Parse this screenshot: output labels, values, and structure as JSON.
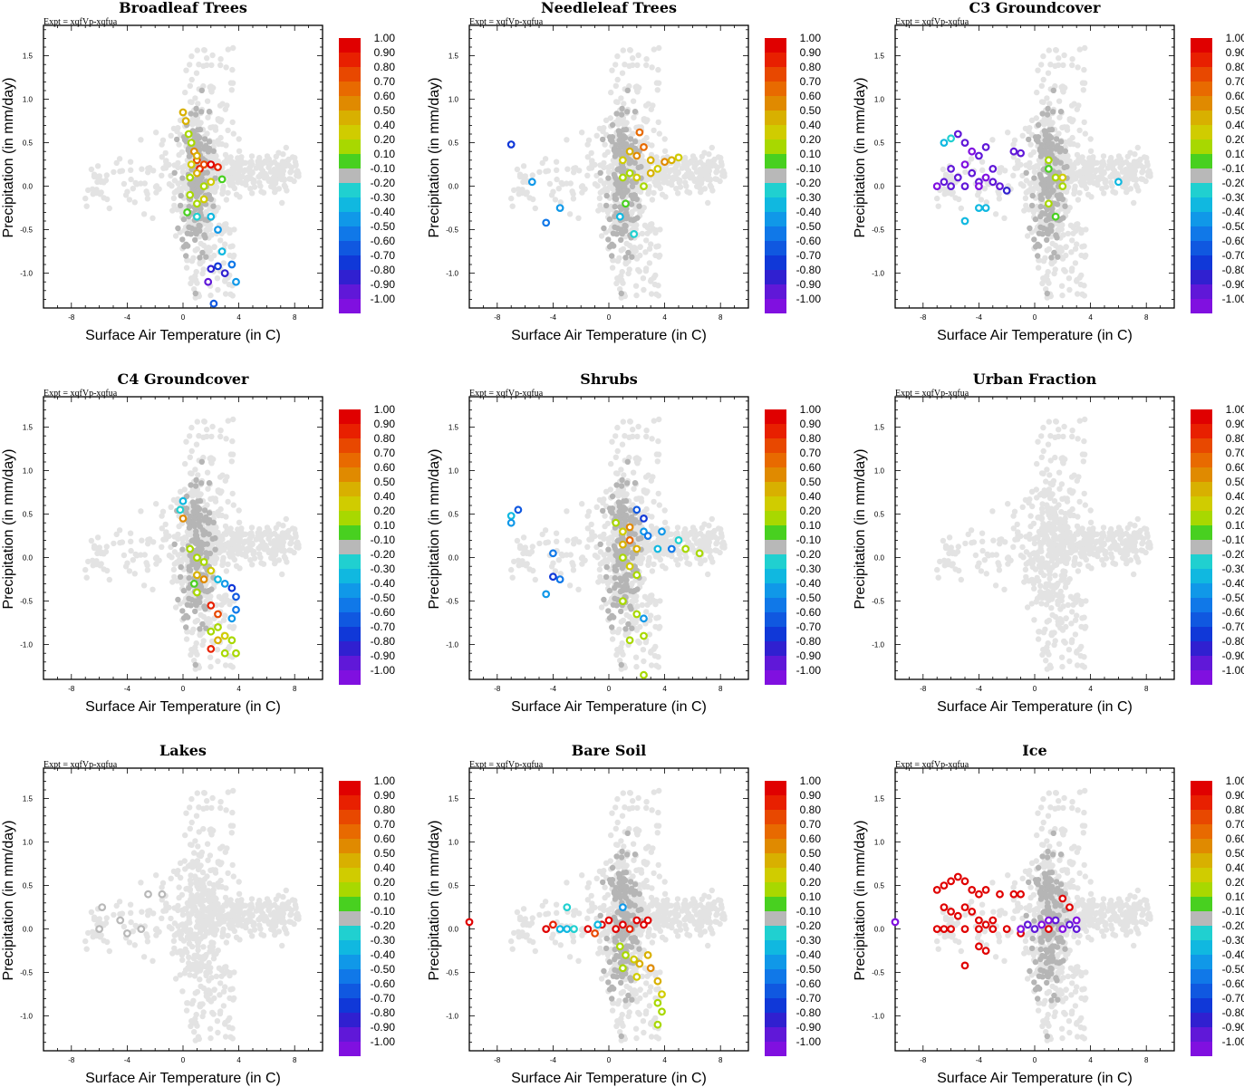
{
  "figure": {
    "experiment_label": "Expt = xqfVp-xqfua",
    "xlabel": "Surface Air Temperature (in C)",
    "ylabel": "Precipitation (in mm/day)",
    "xlim": [
      -10,
      10
    ],
    "ylim": [
      -1.4,
      1.85
    ],
    "x_ticks": [
      "-8",
      "-4",
      "0",
      "4",
      "8"
    ],
    "y_ticks": [
      "1.5",
      "1.0",
      "0.5",
      "0.0",
      "-0.5",
      "-1.0"
    ],
    "colorbar": {
      "labels": [
        "1.00",
        "0.90",
        "0.80",
        "0.70",
        "0.60",
        "0.50",
        "0.40",
        "0.20",
        "0.10",
        "-0.10",
        "-0.20",
        "-0.30",
        "-0.40",
        "-0.50",
        "-0.60",
        "-0.70",
        "-0.80",
        "-0.90",
        "-1.00"
      ],
      "colors": [
        "#e00000",
        "#e82000",
        "#e84800",
        "#e86a00",
        "#e08a00",
        "#d8b000",
        "#d0cc00",
        "#a8d800",
        "#48d020",
        "#b8b8b8",
        "#20d0d0",
        "#10b8e0",
        "#1098e8",
        "#1078e8",
        "#1058e0",
        "#1038d8",
        "#3020d0",
        "#6018d8",
        "#8010e0"
      ]
    }
  },
  "chart_data": [
    {
      "type": "scatter",
      "title": "Broadleaf Trees",
      "xlabel": "Surface Air Temperature (in C)",
      "ylabel": "Precipitation (in mm/day)",
      "xlim": [
        -10,
        10
      ],
      "ylim": [
        -1.4,
        1.85
      ],
      "points": [
        [
          0.0,
          0.85,
          0.5
        ],
        [
          0.2,
          0.75,
          0.5
        ],
        [
          0.4,
          0.6,
          0.2
        ],
        [
          0.6,
          0.5,
          0.3
        ],
        [
          0.8,
          0.4,
          0.6
        ],
        [
          1.0,
          0.3,
          0.8
        ],
        [
          1.2,
          0.2,
          0.9
        ],
        [
          1.5,
          0.25,
          0.8
        ],
        [
          2.0,
          0.25,
          1.0
        ],
        [
          2.5,
          0.22,
          0.9
        ],
        [
          0.5,
          0.1,
          0.3
        ],
        [
          1.0,
          0.15,
          0.5
        ],
        [
          1.5,
          0.0,
          0.2
        ],
        [
          2.0,
          0.05,
          0.4
        ],
        [
          2.8,
          0.08,
          0.1
        ],
        [
          0.5,
          -0.1,
          0.3
        ],
        [
          1.0,
          -0.2,
          0.2
        ],
        [
          1.5,
          -0.15,
          0.4
        ],
        [
          0.3,
          -0.3,
          0.1
        ],
        [
          1.0,
          -0.35,
          -0.2
        ],
        [
          2.0,
          -0.35,
          -0.3
        ],
        [
          2.5,
          -0.5,
          -0.4
        ],
        [
          2.8,
          -0.75,
          -0.3
        ],
        [
          2.0,
          -0.95,
          -0.8
        ],
        [
          2.5,
          -0.92,
          -0.7
        ],
        [
          3.0,
          -1.0,
          -0.8
        ],
        [
          3.5,
          -0.9,
          -0.5
        ],
        [
          3.8,
          -1.1,
          -0.4
        ],
        [
          1.8,
          -1.1,
          -0.9
        ],
        [
          2.2,
          -1.35,
          -0.6
        ],
        [
          1.0,
          0.35,
          0.5
        ],
        [
          0.6,
          0.25,
          0.4
        ]
      ]
    },
    {
      "type": "scatter",
      "title": "Needleleaf Trees",
      "xlabel": "Surface Air Temperature (in C)",
      "ylabel": "Precipitation (in mm/day)",
      "xlim": [
        -10,
        10
      ],
      "ylim": [
        -1.4,
        1.85
      ],
      "points": [
        [
          -7.0,
          0.48,
          -0.7
        ],
        [
          -5.5,
          0.05,
          -0.4
        ],
        [
          -4.5,
          -0.42,
          -0.5
        ],
        [
          -3.5,
          -0.25,
          -0.4
        ],
        [
          1.0,
          0.3,
          0.4
        ],
        [
          1.5,
          0.4,
          0.5
        ],
        [
          2.0,
          0.35,
          0.6
        ],
        [
          2.5,
          0.45,
          0.7
        ],
        [
          2.2,
          0.62,
          0.7
        ],
        [
          3.0,
          0.3,
          0.5
        ],
        [
          3.5,
          0.2,
          0.4
        ],
        [
          4.0,
          0.28,
          0.6
        ],
        [
          4.5,
          0.3,
          0.5
        ],
        [
          5.0,
          0.33,
          0.4
        ],
        [
          1.0,
          0.1,
          0.3
        ],
        [
          1.5,
          0.15,
          0.2
        ],
        [
          2.0,
          0.1,
          0.4
        ],
        [
          1.2,
          -0.2,
          0.1
        ],
        [
          0.8,
          -0.35,
          -0.3
        ],
        [
          1.8,
          -0.55,
          -0.2
        ],
        [
          2.5,
          0.0,
          0.3
        ],
        [
          3.0,
          0.15,
          0.5
        ]
      ]
    },
    {
      "type": "scatter",
      "title": "C3 Groundcover",
      "xlabel": "Surface Air Temperature (in C)",
      "ylabel": "Precipitation (in mm/day)",
      "xlim": [
        -10,
        10
      ],
      "ylim": [
        -1.4,
        1.85
      ],
      "points": [
        [
          -6.5,
          0.5,
          -0.3
        ],
        [
          -6.0,
          0.55,
          -0.2
        ],
        [
          -5.5,
          0.6,
          -0.9
        ],
        [
          -5.0,
          0.5,
          -0.9
        ],
        [
          -4.5,
          0.4,
          -1.0
        ],
        [
          -4.0,
          0.35,
          -0.9
        ],
        [
          -3.5,
          0.45,
          -0.9
        ],
        [
          -6.0,
          0.2,
          -0.9
        ],
        [
          -5.5,
          0.1,
          -0.9
        ],
        [
          -5.0,
          0.25,
          -1.0
        ],
        [
          -4.5,
          0.15,
          -0.9
        ],
        [
          -4.0,
          0.05,
          -0.9
        ],
        [
          -3.5,
          0.1,
          -1.0
        ],
        [
          -3.0,
          0.2,
          -0.9
        ],
        [
          -7.0,
          0.0,
          -1.0
        ],
        [
          -6.5,
          0.05,
          -0.9
        ],
        [
          -6.0,
          0.0,
          -0.9
        ],
        [
          -5.0,
          0.0,
          -0.9
        ],
        [
          -4.0,
          0.0,
          -1.0
        ],
        [
          -3.0,
          0.05,
          -0.9
        ],
        [
          -2.5,
          0.0,
          -0.9
        ],
        [
          -5.0,
          -0.4,
          -0.3
        ],
        [
          -4.0,
          -0.25,
          -0.3
        ],
        [
          -3.5,
          -0.25,
          -0.3
        ],
        [
          -1.5,
          0.4,
          -0.9
        ],
        [
          -1.0,
          0.38,
          -0.9
        ],
        [
          -2.0,
          -0.05,
          -0.8
        ],
        [
          6.0,
          0.05,
          -0.3
        ],
        [
          1.0,
          0.2,
          0.1
        ],
        [
          1.5,
          0.1,
          0.2
        ],
        [
          2.0,
          0.0,
          0.3
        ],
        [
          1.0,
          -0.2,
          0.2
        ],
        [
          1.5,
          -0.35,
          0.1
        ],
        [
          2.0,
          0.1,
          0.4
        ],
        [
          1.0,
          0.3,
          0.2
        ]
      ]
    },
    {
      "type": "scatter",
      "title": "C4 Groundcover",
      "xlabel": "Surface Air Temperature (in C)",
      "ylabel": "Precipitation (in mm/day)",
      "xlim": [
        -10,
        10
      ],
      "ylim": [
        -1.4,
        1.85
      ],
      "points": [
        [
          0.0,
          0.65,
          -0.3
        ],
        [
          -0.2,
          0.55,
          -0.2
        ],
        [
          0.0,
          0.45,
          0.6
        ],
        [
          0.5,
          0.1,
          0.2
        ],
        [
          1.0,
          0.0,
          0.3
        ],
        [
          1.5,
          -0.05,
          0.2
        ],
        [
          1.0,
          -0.2,
          0.5
        ],
        [
          1.5,
          -0.25,
          0.6
        ],
        [
          2.0,
          -0.15,
          0.4
        ],
        [
          2.5,
          -0.25,
          -0.3
        ],
        [
          3.0,
          -0.3,
          -0.4
        ],
        [
          3.5,
          -0.35,
          -0.7
        ],
        [
          3.8,
          -0.45,
          -0.6
        ],
        [
          3.8,
          -0.6,
          -0.5
        ],
        [
          3.5,
          -0.7,
          -0.4
        ],
        [
          2.0,
          -0.55,
          0.9
        ],
        [
          2.5,
          -0.65,
          0.8
        ],
        [
          2.0,
          -0.85,
          0.2
        ],
        [
          2.5,
          -0.95,
          0.5
        ],
        [
          3.0,
          -0.9,
          0.4
        ],
        [
          3.5,
          -0.95,
          0.3
        ],
        [
          2.0,
          -1.05,
          0.9
        ],
        [
          3.0,
          -1.1,
          0.3
        ],
        [
          3.8,
          -1.1,
          0.2
        ],
        [
          1.0,
          -0.4,
          0.2
        ],
        [
          0.8,
          -0.3,
          0.1
        ],
        [
          2.5,
          -0.8,
          0.3
        ]
      ]
    },
    {
      "type": "scatter",
      "title": "Shrubs",
      "xlabel": "Surface Air Temperature (in C)",
      "ylabel": "Precipitation (in mm/day)",
      "xlim": [
        -10,
        10
      ],
      "ylim": [
        -1.4,
        1.85
      ],
      "points": [
        [
          -7.0,
          0.48,
          -0.3
        ],
        [
          -6.5,
          0.55,
          -0.6
        ],
        [
          -7.0,
          0.4,
          -0.4
        ],
        [
          -4.5,
          -0.42,
          -0.4
        ],
        [
          -3.5,
          -0.25,
          -0.5
        ],
        [
          -4.0,
          -0.22,
          -0.7
        ],
        [
          -4.0,
          0.05,
          -0.5
        ],
        [
          0.5,
          0.4,
          0.2
        ],
        [
          1.0,
          0.3,
          0.4
        ],
        [
          1.5,
          0.2,
          0.7
        ],
        [
          2.0,
          0.1,
          0.5
        ],
        [
          1.0,
          0.0,
          0.3
        ],
        [
          1.5,
          -0.1,
          0.4
        ],
        [
          2.0,
          -0.2,
          0.2
        ],
        [
          2.5,
          0.3,
          -0.4
        ],
        [
          2.8,
          0.25,
          -0.5
        ],
        [
          2.0,
          0.55,
          -0.6
        ],
        [
          2.5,
          0.45,
          -0.7
        ],
        [
          3.5,
          0.1,
          -0.3
        ],
        [
          3.8,
          0.3,
          -0.4
        ],
        [
          4.5,
          0.1,
          -0.5
        ],
        [
          5.0,
          0.2,
          -0.2
        ],
        [
          5.5,
          0.1,
          0.2
        ],
        [
          6.5,
          0.05,
          0.2
        ],
        [
          1.0,
          -0.5,
          0.2
        ],
        [
          2.0,
          -0.65,
          0.2
        ],
        [
          2.5,
          -0.7,
          -0.4
        ],
        [
          2.5,
          -0.9,
          0.3
        ],
        [
          1.5,
          -0.95,
          0.2
        ],
        [
          2.5,
          -1.35,
          0.3
        ],
        [
          1.5,
          0.35,
          0.6
        ],
        [
          1.0,
          0.15,
          0.5
        ]
      ]
    },
    {
      "type": "scatter",
      "title": "Urban Fraction",
      "xlabel": "Surface Air Temperature (in C)",
      "ylabel": "Precipitation (in mm/day)",
      "xlim": [
        -10,
        10
      ],
      "ylim": [
        -1.4,
        1.85
      ],
      "points": []
    },
    {
      "type": "scatter",
      "title": "Lakes",
      "xlabel": "Surface Air Temperature (in C)",
      "ylabel": "Precipitation (in mm/day)",
      "xlim": [
        -10,
        10
      ],
      "ylim": [
        -1.4,
        1.85
      ],
      "points": [
        [
          -5.8,
          0.25,
          0.0
        ],
        [
          -4.5,
          0.1,
          0.0
        ],
        [
          -4.0,
          -0.05,
          0.0
        ],
        [
          -3.0,
          0.0,
          0.0
        ],
        [
          -2.5,
          0.4,
          0.0
        ],
        [
          -1.5,
          0.4,
          0.0
        ],
        [
          -6.0,
          0.0,
          0.0
        ]
      ]
    },
    {
      "type": "scatter",
      "title": "Bare Soil",
      "xlabel": "Surface Air Temperature (in C)",
      "ylabel": "Precipitation (in mm/day)",
      "xlim": [
        -10,
        10
      ],
      "ylim": [
        -1.4,
        1.85
      ],
      "points": [
        [
          -10.0,
          0.08,
          1.0
        ],
        [
          -4.5,
          0.0,
          1.0
        ],
        [
          -4.0,
          0.05,
          0.9
        ],
        [
          -3.5,
          0.0,
          -0.3
        ],
        [
          -3.0,
          0.0,
          -0.3
        ],
        [
          -2.5,
          0.0,
          -0.2
        ],
        [
          -3.0,
          0.25,
          -0.2
        ],
        [
          -1.5,
          0.0,
          1.0
        ],
        [
          -1.0,
          -0.05,
          0.8
        ],
        [
          -0.5,
          0.05,
          1.0
        ],
        [
          0.0,
          0.1,
          1.0
        ],
        [
          0.5,
          0.0,
          1.0
        ],
        [
          1.0,
          0.05,
          1.0
        ],
        [
          1.5,
          0.0,
          0.9
        ],
        [
          2.0,
          0.1,
          1.0
        ],
        [
          2.5,
          0.05,
          1.0
        ],
        [
          2.8,
          0.1,
          1.0
        ],
        [
          -0.8,
          0.05,
          -0.3
        ],
        [
          0.8,
          -0.2,
          0.2
        ],
        [
          1.2,
          -0.3,
          0.3
        ],
        [
          1.8,
          -0.35,
          0.4
        ],
        [
          2.2,
          -0.4,
          0.5
        ],
        [
          2.8,
          -0.3,
          0.5
        ],
        [
          3.0,
          -0.45,
          0.6
        ],
        [
          3.5,
          -0.6,
          0.5
        ],
        [
          3.8,
          -0.75,
          0.4
        ],
        [
          3.5,
          -0.85,
          0.3
        ],
        [
          3.8,
          -0.95,
          0.2
        ],
        [
          3.5,
          -1.1,
          0.2
        ],
        [
          1.0,
          -0.45,
          0.3
        ],
        [
          2.0,
          -0.55,
          0.4
        ],
        [
          1.0,
          0.25,
          -0.4
        ]
      ]
    },
    {
      "type": "scatter",
      "title": "Ice",
      "xlabel": "Surface Air Temperature (in C)",
      "ylabel": "Precipitation (in mm/day)",
      "xlim": [
        -10,
        10
      ],
      "ylim": [
        -1.4,
        1.85
      ],
      "points": [
        [
          -7.0,
          0.45,
          1.0
        ],
        [
          -6.5,
          0.5,
          1.0
        ],
        [
          -6.0,
          0.55,
          1.0
        ],
        [
          -5.5,
          0.6,
          1.0
        ],
        [
          -5.0,
          0.55,
          1.0
        ],
        [
          -4.5,
          0.45,
          1.0
        ],
        [
          -4.0,
          0.4,
          1.0
        ],
        [
          -3.5,
          0.45,
          1.0
        ],
        [
          -2.5,
          0.4,
          1.0
        ],
        [
          -1.5,
          0.4,
          1.0
        ],
        [
          -1.0,
          0.4,
          1.0
        ],
        [
          -6.5,
          0.25,
          1.0
        ],
        [
          -6.0,
          0.2,
          1.0
        ],
        [
          -5.5,
          0.15,
          1.0
        ],
        [
          -5.0,
          0.25,
          1.0
        ],
        [
          -4.5,
          0.2,
          1.0
        ],
        [
          -4.0,
          0.1,
          1.0
        ],
        [
          -3.5,
          0.05,
          1.0
        ],
        [
          -3.0,
          0.1,
          1.0
        ],
        [
          -7.0,
          0.0,
          1.0
        ],
        [
          -6.5,
          0.0,
          1.0
        ],
        [
          -6.0,
          0.0,
          1.0
        ],
        [
          -5.0,
          0.0,
          1.0
        ],
        [
          -4.0,
          0.0,
          1.0
        ],
        [
          -3.0,
          0.0,
          1.0
        ],
        [
          -2.0,
          0.0,
          1.0
        ],
        [
          -1.0,
          -0.05,
          1.0
        ],
        [
          -4.0,
          -0.2,
          1.0
        ],
        [
          -3.5,
          -0.25,
          1.0
        ],
        [
          -5.0,
          -0.42,
          1.0
        ],
        [
          1.0,
          0.0,
          1.0
        ],
        [
          2.0,
          0.35,
          1.0
        ],
        [
          2.5,
          0.25,
          1.0
        ],
        [
          -10.0,
          0.08,
          -1.0
        ],
        [
          -1.0,
          0.0,
          -1.0
        ],
        [
          0.0,
          0.0,
          -0.9
        ],
        [
          0.5,
          0.05,
          -1.0
        ],
        [
          1.5,
          0.1,
          -0.9
        ],
        [
          2.0,
          0.0,
          -1.0
        ],
        [
          2.5,
          0.05,
          -0.9
        ],
        [
          3.0,
          0.1,
          -1.0
        ],
        [
          3.0,
          0.0,
          -0.9
        ],
        [
          1.0,
          0.1,
          -1.0
        ],
        [
          -0.5,
          0.05,
          -0.9
        ]
      ]
    }
  ]
}
